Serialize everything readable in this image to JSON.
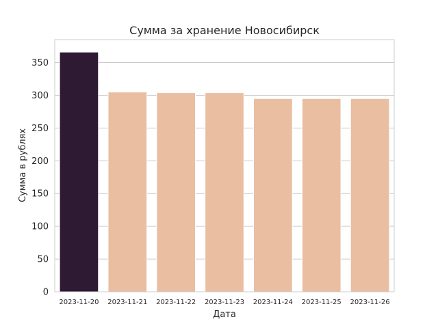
{
  "chart_data": {
    "type": "bar",
    "title": "Сумма за хранение Новосибирск",
    "xlabel": "Дата",
    "ylabel": "Сумма в рублях",
    "categories": [
      "2023-11-20",
      "2023-11-21",
      "2023-11-22",
      "2023-11-23",
      "2023-11-24",
      "2023-11-25",
      "2023-11-26"
    ],
    "values": [
      366,
      305,
      304,
      304,
      295,
      295,
      295
    ],
    "bar_colors": [
      "#2e1a33",
      "#eabea1",
      "#eabea1",
      "#eabea1",
      "#eabea1",
      "#eabea1",
      "#eabea1"
    ],
    "ylim": [
      0,
      385
    ],
    "yticks": [
      0,
      50,
      100,
      150,
      200,
      250,
      300,
      350
    ],
    "grid": "horizontal",
    "grid_color": "#cccccc",
    "legend": "none"
  }
}
